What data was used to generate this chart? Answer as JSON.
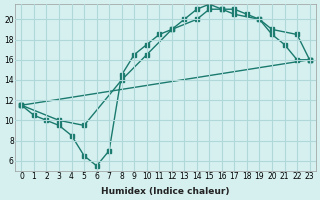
{
  "xlabel": "Humidex (Indice chaleur)",
  "ylabel": "",
  "background_color": "#d6f0f0",
  "grid_color": "#b0d8d8",
  "line_color": "#1a7a6e",
  "xlim": [
    -0.5,
    23.5
  ],
  "ylim": [
    5,
    21.5
  ],
  "yticks": [
    6,
    8,
    10,
    12,
    14,
    16,
    18,
    20
  ],
  "xticks": [
    0,
    1,
    2,
    3,
    4,
    5,
    6,
    7,
    8,
    9,
    10,
    11,
    12,
    13,
    14,
    15,
    16,
    17,
    18,
    19,
    20,
    21,
    22,
    23
  ],
  "line1_x": [
    0,
    1,
    2,
    3,
    4,
    5,
    6,
    7,
    8,
    9,
    10,
    11,
    12,
    13,
    14,
    15,
    16,
    17,
    18,
    19,
    20,
    21,
    22,
    23
  ],
  "line1_y": [
    11.5,
    10.5,
    10,
    9.5,
    8.5,
    6.5,
    5.5,
    7,
    14.5,
    16.5,
    17.5,
    18.5,
    19,
    20,
    21,
    21.5,
    21,
    21,
    20.5,
    20,
    18.5,
    17.5,
    16,
    16
  ],
  "line2_x": [
    0,
    3,
    5,
    8,
    10,
    12,
    14,
    15,
    16,
    17,
    19,
    20,
    22,
    23
  ],
  "line2_y": [
    11.5,
    10,
    9.5,
    14,
    16.5,
    19,
    20,
    21,
    21,
    20.5,
    20,
    19,
    18.5,
    16
  ],
  "line3_x": [
    0,
    23
  ],
  "line3_y": [
    11.5,
    16
  ]
}
